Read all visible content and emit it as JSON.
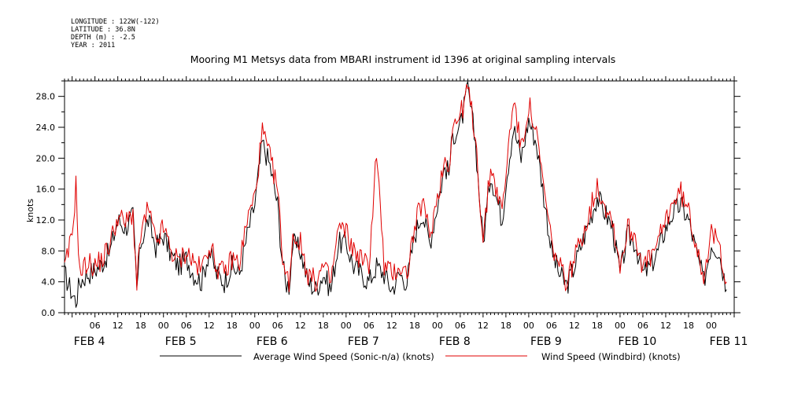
{
  "header": {
    "meta_lines": [
      "LONGITUDE : 122W(-122)",
      "LATITUDE : 36.8N",
      "DEPTH (m) : -2.5",
      "YEAR : 2011"
    ],
    "title": "Mooring M1 Metsys data from MBARI instrument id 1396 at original sampling intervals"
  },
  "chart_data": {
    "type": "line",
    "title": "Mooring M1 Metsys data from MBARI instrument id 1396 at original sampling intervals",
    "ylabel": "knots",
    "xlabel": "",
    "ylim": [
      0,
      30
    ],
    "xlim_hours": [
      -2,
      174
    ],
    "yticks": [
      "0.0",
      "4.0",
      "8.0",
      "12.0",
      "16.0",
      "20.0",
      "24.0",
      "28.0"
    ],
    "xtick_hour_labels": [
      "06",
      "12",
      "18",
      "00",
      "06",
      "12",
      "18",
      "00",
      "06",
      "12",
      "18",
      "00",
      "06",
      "12",
      "18",
      "00",
      "06",
      "12",
      "18",
      "00",
      "06",
      "12",
      "18",
      "00",
      "06",
      "12",
      "18",
      "00"
    ],
    "day_labels": [
      "FEB  4",
      "FEB  5",
      "FEB  6",
      "FEB  7",
      "FEB  8",
      "FEB  9",
      "FEB 10",
      "FEB 11"
    ],
    "grid": false,
    "legend_position": "bottom",
    "series": [
      {
        "name": "Average Wind Speed (Sonic-n/a) (knots)",
        "color": "#000000",
        "x": [
          -2,
          0,
          1,
          2,
          4,
          6,
          8,
          10,
          12,
          14,
          16,
          17,
          18,
          20,
          22,
          24,
          26,
          28,
          30,
          32,
          34,
          36,
          38,
          40,
          42,
          44,
          46,
          48,
          50,
          52,
          54,
          55,
          56,
          57,
          58,
          60,
          62,
          64,
          66,
          68,
          70,
          72,
          74,
          76,
          78,
          80,
          82,
          84,
          86,
          88,
          90,
          92,
          94,
          96,
          98,
          99,
          100,
          102,
          104,
          106,
          108,
          110,
          112,
          113,
          114,
          116,
          118,
          120,
          122,
          124,
          126,
          128,
          130,
          132,
          134,
          136,
          138,
          140,
          142,
          144,
          146,
          148,
          150,
          152,
          154,
          156,
          158,
          160,
          162,
          164,
          166,
          168,
          170,
          172
        ],
        "y": [
          5.0,
          2.5,
          1.5,
          4.0,
          5.0,
          5.5,
          6.5,
          8.0,
          12.0,
          11.0,
          12.5,
          3.0,
          9.0,
          12.0,
          8.5,
          10.0,
          7.5,
          6.0,
          7.0,
          5.0,
          4.0,
          8.0,
          5.0,
          4.0,
          6.0,
          5.0,
          10.0,
          14.0,
          22.0,
          19.0,
          14.0,
          8.0,
          4.0,
          3.5,
          9.0,
          8.0,
          4.0,
          3.0,
          5.0,
          3.0,
          9.0,
          9.0,
          6.0,
          5.0,
          4.0,
          6.0,
          5.0,
          3.0,
          5.0,
          4.0,
          10.0,
          13.0,
          9.0,
          14.0,
          19.0,
          18.0,
          23.0,
          24.0,
          29.0,
          22.0,
          9.0,
          18.0,
          14.0,
          12.0,
          17.0,
          24.0,
          20.0,
          25.0,
          22.0,
          15.0,
          8.0,
          5.0,
          3.5,
          6.0,
          9.0,
          12.0,
          15.0,
          13.0,
          11.0,
          5.0,
          10.0,
          9.0,
          5.0,
          6.0,
          8.0,
          11.0,
          13.0,
          14.0,
          12.0,
          8.0,
          4.0,
          9.0,
          8.0,
          3.0
        ],
        "note_shape": "slightly below red series"
      },
      {
        "name": "Wind Speed (Windbird) (knots)",
        "color": "#e00000",
        "x": [
          -2,
          0,
          1,
          2,
          4,
          6,
          8,
          10,
          12,
          14,
          16,
          17,
          18,
          20,
          22,
          24,
          26,
          28,
          30,
          32,
          34,
          36,
          38,
          40,
          42,
          44,
          46,
          48,
          50,
          52,
          54,
          55,
          56,
          57,
          58,
          60,
          62,
          64,
          66,
          68,
          70,
          72,
          74,
          76,
          78,
          80,
          82,
          84,
          86,
          88,
          90,
          92,
          94,
          96,
          98,
          99,
          100,
          102,
          104,
          106,
          108,
          110,
          112,
          113,
          114,
          116,
          118,
          120,
          122,
          124,
          126,
          128,
          130,
          132,
          134,
          136,
          138,
          140,
          142,
          144,
          146,
          148,
          150,
          152,
          154,
          156,
          158,
          160,
          162,
          164,
          166,
          168,
          170,
          172
        ],
        "y": [
          5.5,
          10.0,
          16.5,
          5.0,
          6.5,
          6.0,
          7.0,
          9.0,
          12.5,
          11.5,
          13.0,
          3.5,
          10.0,
          13.5,
          9.0,
          11.0,
          8.0,
          6.5,
          8.0,
          6.5,
          5.5,
          9.0,
          6.0,
          5.0,
          7.0,
          6.5,
          12.0,
          15.0,
          23.5,
          20.0,
          16.0,
          9.0,
          5.0,
          4.0,
          10.0,
          9.0,
          5.0,
          4.0,
          6.0,
          4.0,
          11.0,
          10.5,
          8.0,
          7.0,
          6.0,
          21.0,
          6.0,
          5.0,
          6.0,
          5.0,
          11.0,
          14.5,
          10.0,
          15.0,
          20.0,
          19.0,
          24.0,
          25.5,
          29.0,
          23.0,
          9.0,
          19.0,
          15.0,
          13.0,
          18.0,
          28.0,
          21.0,
          27.0,
          23.0,
          16.0,
          9.0,
          6.0,
          4.0,
          7.0,
          10.0,
          13.0,
          16.5,
          14.0,
          12.0,
          6.0,
          11.0,
          10.0,
          6.0,
          7.0,
          9.0,
          12.0,
          14.5,
          15.5,
          13.0,
          9.0,
          5.0,
          10.0,
          9.0,
          4.0
        ]
      }
    ]
  },
  "legend": {
    "entries": [
      {
        "label": "Average Wind Speed (Sonic-n/a) (knots)",
        "color": "#000000"
      },
      {
        "label": "Wind Speed (Windbird) (knots)",
        "color": "#e00000"
      }
    ]
  }
}
